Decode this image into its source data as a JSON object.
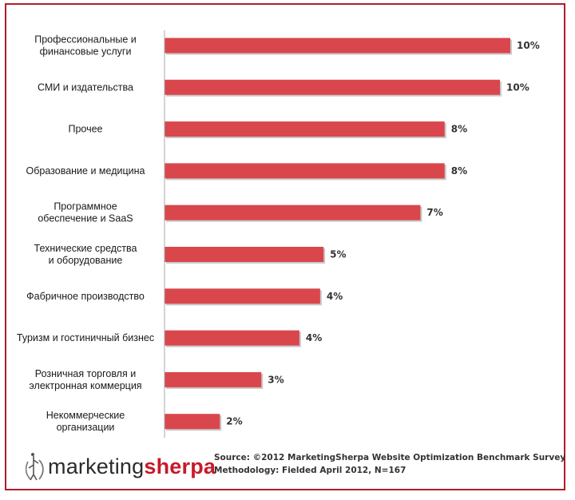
{
  "chart_data": {
    "type": "bar",
    "orientation": "horizontal",
    "categories": [
      [
        "Профессиональные и",
        "финансовые услуги"
      ],
      [
        "СМИ и издательства"
      ],
      [
        "Прочее"
      ],
      [
        "Образование и медицина"
      ],
      [
        "Программное",
        "обеспечение и SaaS"
      ],
      [
        "Технические средства",
        "и оборудование"
      ],
      [
        "Фабричное производство"
      ],
      [
        "Туризм и гостиничный бизнес"
      ],
      [
        "Розничная торговля и",
        "электронная коммерция"
      ],
      [
        "Некоммерческие",
        "организации"
      ]
    ],
    "values": [
      10,
      10,
      8,
      8,
      7,
      5,
      4,
      4,
      3,
      2
    ],
    "value_labels": [
      "10%",
      "10%",
      "8%",
      "8%",
      "7%",
      "5%",
      "4%",
      "4%",
      "3%",
      "2%"
    ],
    "bar_lengths_relative": [
      10.0,
      9.7,
      8.1,
      8.1,
      7.4,
      4.6,
      4.5,
      3.9,
      2.8,
      1.6
    ],
    "bar_color": "#d9474c",
    "grid": false
  },
  "footer": {
    "logo_left": "marketing",
    "logo_right": "sherpa",
    "source_line1": "Source: ©2012 MarketingSherpa Website Optimization Benchmark Survey",
    "source_line2": "Methodology: Fielded April 2012, N=167"
  },
  "colors": {
    "frame": "#b01c2b",
    "bar": "#d9474c",
    "brand": "#c61a2a"
  }
}
